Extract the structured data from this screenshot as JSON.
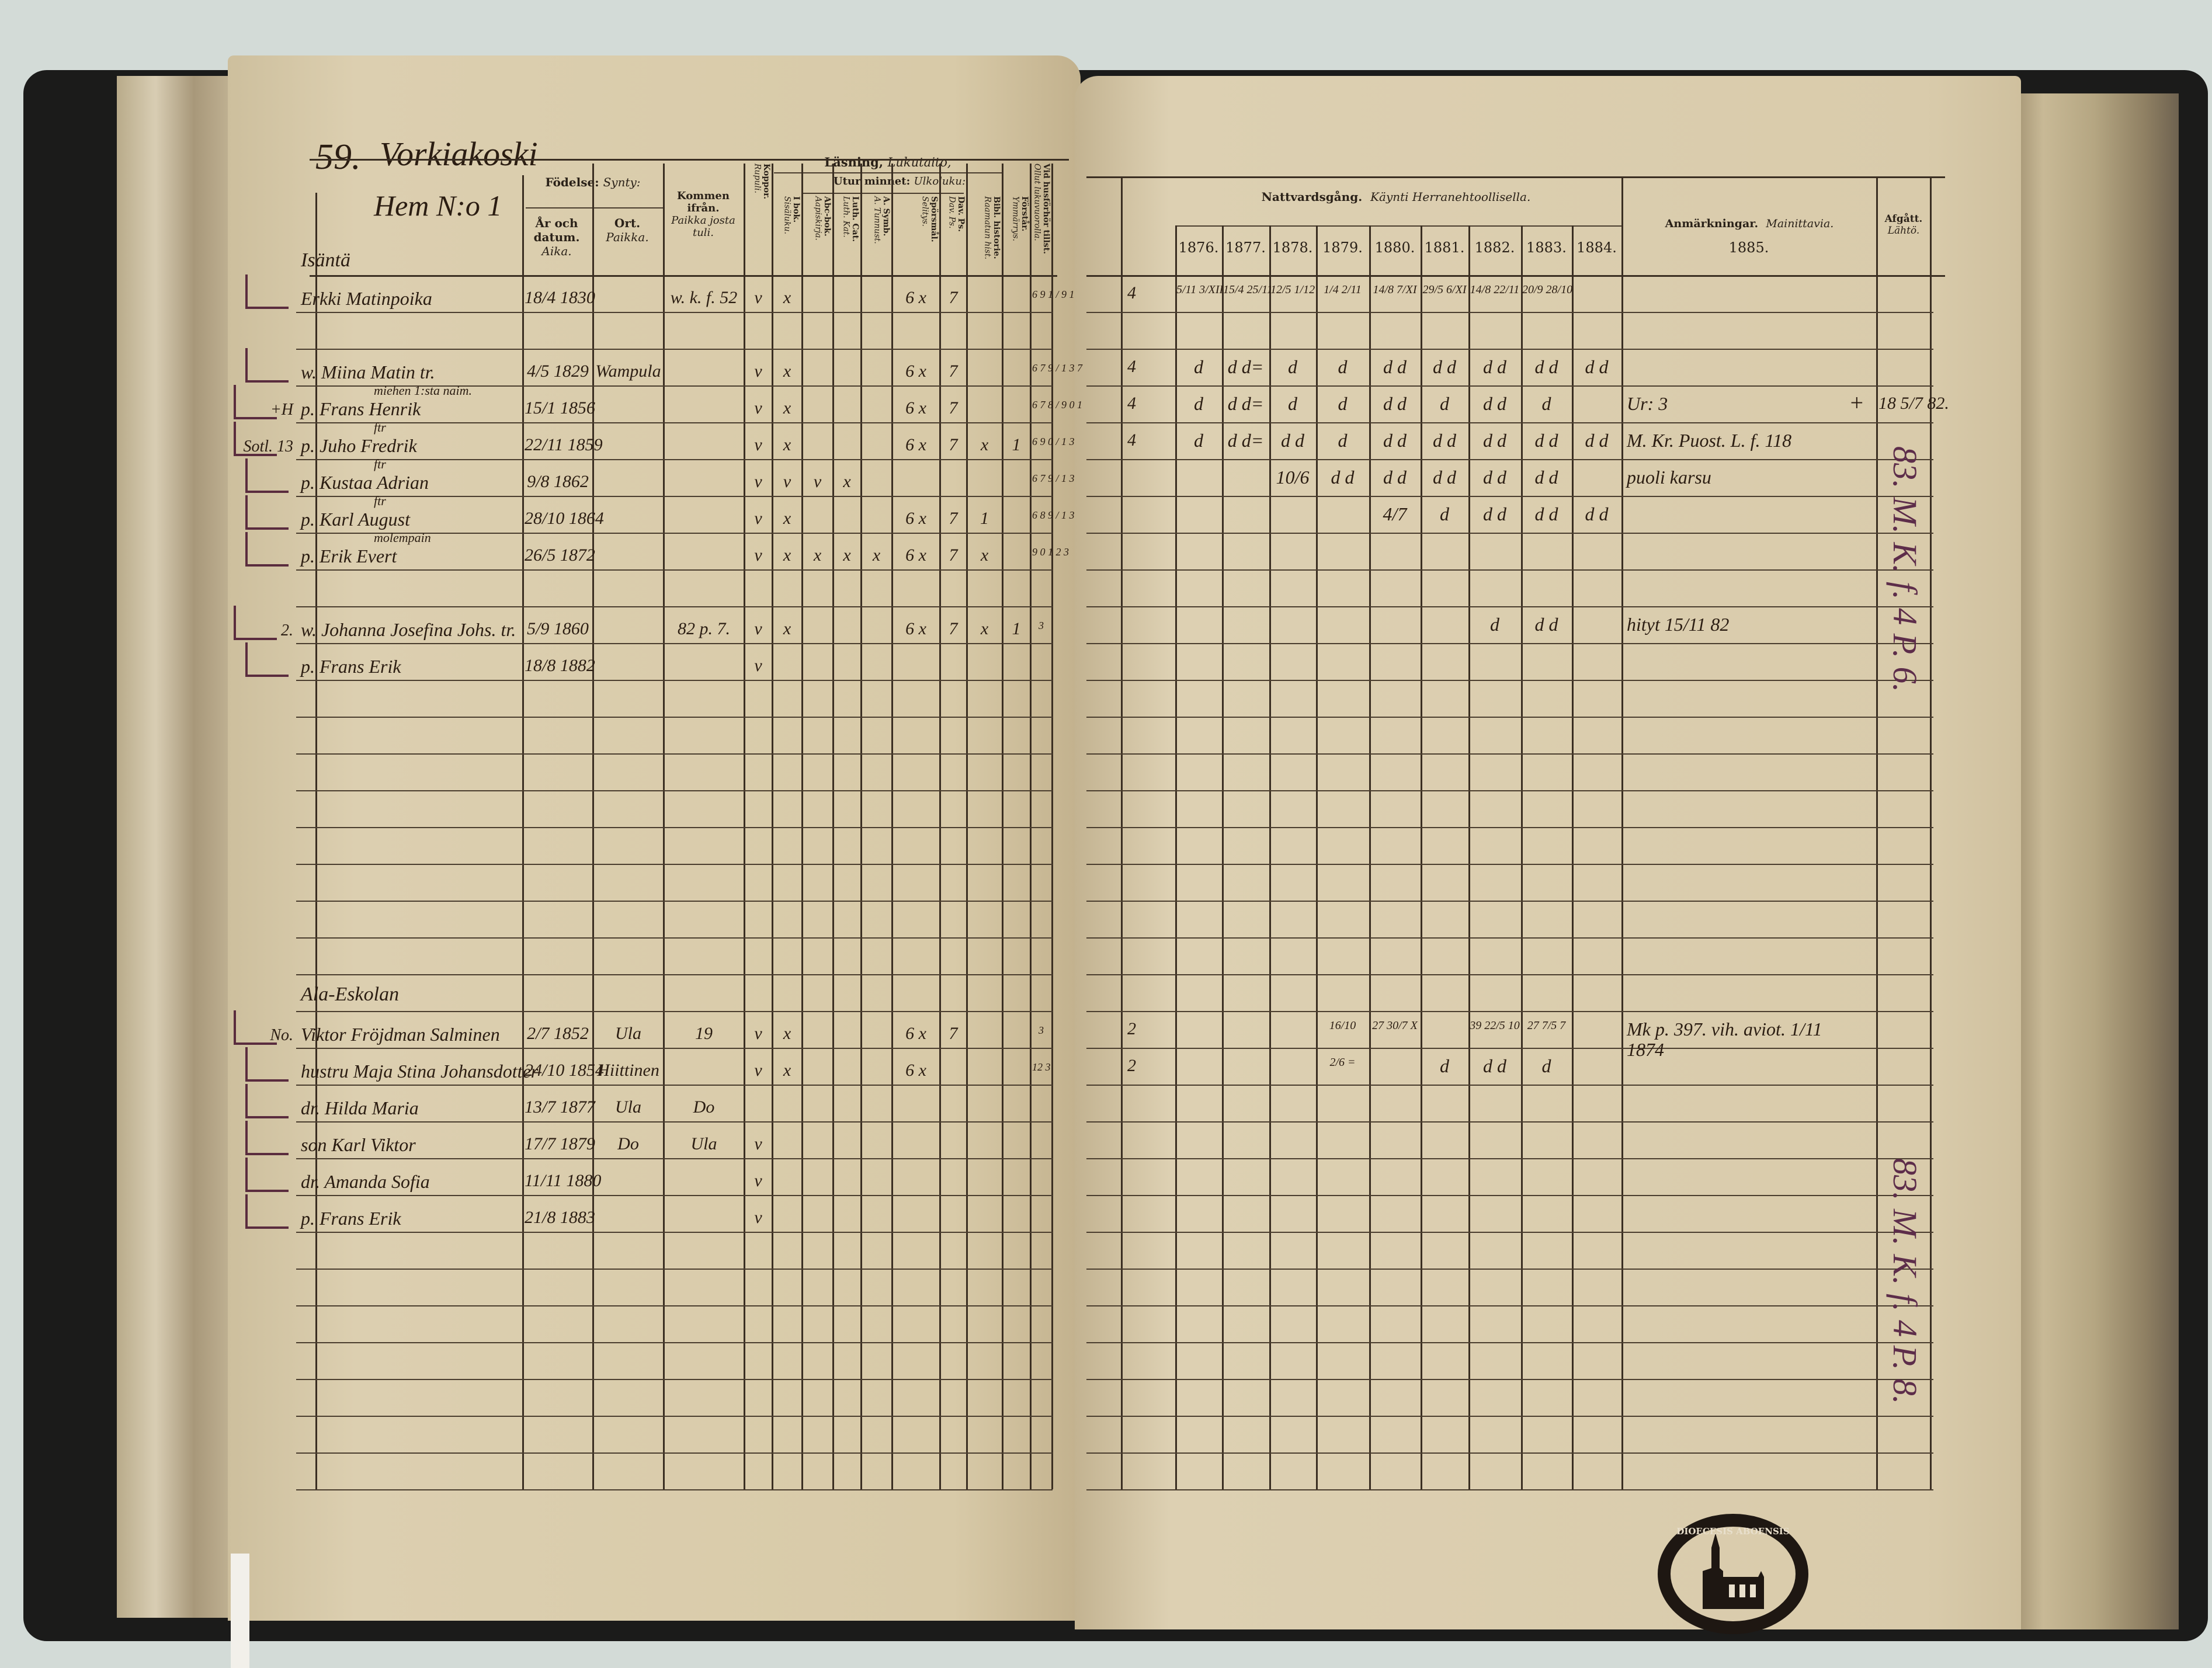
{
  "left_page": {
    "page_number": "59.",
    "village": "Vorkiakoski",
    "household": "Hem N:o 1",
    "headers": {
      "birth": {
        "sv": "Födelse:",
        "fi": "Synty:"
      },
      "date": {
        "sv": "År och datum.",
        "fi": "Aika."
      },
      "place": {
        "sv": "Ort.",
        "fi": "Paikka."
      },
      "came_from": {
        "sv": "Kommen ifrån.",
        "fi": "Paikka josta tuli."
      },
      "smallpox": {
        "sv": "Koppor.",
        "fi": "Rupuli."
      },
      "reading": {
        "sv": "Läsning,",
        "fi": "Lukutaito,"
      },
      "memory": {
        "sv": "Utur minnet:",
        "fi": "Ulkoluku:"
      },
      "book": {
        "sv": "I bok.",
        "fi": "Sisäluku."
      },
      "abc": {
        "sv": "Abc-bok.",
        "fi": "Aapiskirja."
      },
      "catechism": {
        "sv": "Luth. Cat.",
        "fi": "Luth. Kat."
      },
      "symbols": {
        "sv": "A. Symb.",
        "fi": "A. Tunnust."
      },
      "questions": {
        "sv": "Spörsmål.",
        "fi": "Selitys."
      },
      "psalms": {
        "sv": "Dav. Ps.",
        "fi": "Dav. Ps."
      },
      "bible_history": {
        "sv": "Bibl. historie.",
        "fi": "Raamatun hist."
      },
      "understands": {
        "sv": "Förstår.",
        "fi": "Ymmärrys."
      },
      "examination": {
        "sv": "Vid husförhör tillst.",
        "fi": "Ollut lukuvuorolla."
      }
    },
    "row_labels": [
      {
        "row": 0,
        "text": "Isäntä"
      },
      {
        "row": 2,
        "text": "miehen 1:sta naim.",
        "below": true
      },
      {
        "row": 4,
        "text": "ftr"
      },
      {
        "row": 5,
        "text": "ftr"
      },
      {
        "row": 6,
        "text": "ftr"
      },
      {
        "row": 6,
        "text": "molempain",
        "below": true
      },
      {
        "row": 19,
        "text": "Ala-Eskolan"
      }
    ],
    "entries": [
      {
        "row": 0,
        "prefix": "",
        "name": "Erkki Matinpoika",
        "birth": "18/4 1830",
        "place": "",
        "from": "w. k. f. 52",
        "koppor": "v",
        "ibok": "x",
        "abc": "",
        "cat": "",
        "symb": "",
        "questions": "6 x",
        "psalms": "7",
        "bible": "",
        "understands": "",
        "exam": "6 9 1 / 9 1"
      },
      {
        "row": 2,
        "prefix": "",
        "name": "w. Miina Matin tr.",
        "birth": "4/5 1829",
        "place": "Wampula",
        "from": "",
        "koppor": "v",
        "ibok": "x",
        "abc": "",
        "cat": "",
        "symb": "",
        "questions": "6 x",
        "psalms": "7",
        "bible": "",
        "understands": "",
        "exam": "6 7 9 / 1 3 7"
      },
      {
        "row": 3,
        "prefix": "+H",
        "name": "p. Frans Henrik",
        "birth": "15/1 1856",
        "place": "",
        "from": "",
        "koppor": "v",
        "ibok": "x",
        "abc": "",
        "cat": "",
        "symb": "",
        "questions": "6 x",
        "psalms": "7",
        "bible": "",
        "understands": "",
        "exam": "6 7 8 / 9 0 1"
      },
      {
        "row": 4,
        "prefix": "Sotl. 13",
        "name": "p. Juho Fredrik",
        "birth": "22/11 1859",
        "place": "",
        "from": "",
        "koppor": "v",
        "ibok": "x",
        "abc": "",
        "cat": "",
        "symb": "",
        "questions": "6 x",
        "psalms": "7",
        "bible": "x",
        "understands": "1",
        "exam": "6 9 0 / 1 3"
      },
      {
        "row": 5,
        "prefix": "",
        "name": "p. Kustaa Adrian",
        "birth": "9/8 1862",
        "place": "",
        "from": "",
        "koppor": "v",
        "ibok": "v",
        "abc": "v",
        "cat": "x",
        "symb": "",
        "questions": "",
        "psalms": "",
        "bible": "",
        "understands": "",
        "exam": "6 7 9 / 1 3"
      },
      {
        "row": 6,
        "prefix": "",
        "name": "p. Karl August",
        "birth": "28/10 1864",
        "place": "",
        "from": "",
        "koppor": "v",
        "ibok": "x",
        "abc": "",
        "cat": "",
        "symb": "",
        "questions": "6 x",
        "psalms": "7",
        "bible": "1",
        "understands": "",
        "exam": "6 8 9 / 1 3"
      },
      {
        "row": 7,
        "prefix": "",
        "name": "p. Erik Evert",
        "birth": "26/5 1872",
        "place": "",
        "from": "",
        "koppor": "v",
        "ibok": "x",
        "abc": "x",
        "cat": "x",
        "symb": "x",
        "questions": "6 x",
        "psalms": "7",
        "bible": "x",
        "understands": "",
        "exam": "9 0 1 2 3"
      },
      {
        "row": 9,
        "prefix": "2.",
        "name": "w. Johanna Josefina Johs. tr.",
        "birth": "5/9 1860",
        "place": "",
        "from": "82 p. 7.",
        "koppor": "v",
        "ibok": "x",
        "abc": "",
        "cat": "",
        "symb": "",
        "questions": "6 x",
        "psalms": "7",
        "bible": "x",
        "understands": "1",
        "exam": "3"
      },
      {
        "row": 10,
        "prefix": "",
        "name": "p. Frans Erik",
        "birth": "18/8 1882",
        "place": "",
        "from": "",
        "koppor": "v",
        "ibok": "",
        "abc": "",
        "cat": "",
        "symb": "",
        "questions": "",
        "psalms": "",
        "bible": "",
        "understands": "",
        "exam": ""
      },
      {
        "row": 20,
        "prefix": "No.",
        "name": "Viktor Fröjdman Salminen",
        "birth": "2/7 1852",
        "place": "Ula",
        "from": "19",
        "koppor": "v",
        "ibok": "x",
        "abc": "",
        "cat": "",
        "symb": "",
        "questions": "6 x",
        "psalms": "7",
        "bible": "",
        "understands": "",
        "exam": "3"
      },
      {
        "row": 21,
        "prefix": "",
        "name": "hustru Maja Stina Johansdotter",
        "birth": "24/10 1854",
        "place": "Hiittinen",
        "from": "",
        "koppor": "v",
        "ibok": "x",
        "abc": "",
        "cat": "",
        "symb": "",
        "questions": "6 x",
        "psalms": "",
        "bible": "",
        "understands": "",
        "exam": "12 3"
      },
      {
        "row": 22,
        "prefix": "",
        "name": "dr. Hilda Maria",
        "birth": "13/7 1877",
        "place": "Ula",
        "from": "Do",
        "koppor": "",
        "ibok": "",
        "abc": "",
        "cat": "",
        "symb": "",
        "questions": "",
        "psalms": "",
        "bible": "",
        "understands": "",
        "exam": ""
      },
      {
        "row": 23,
        "prefix": "",
        "name": "son Karl Viktor",
        "birth": "17/7 1879",
        "place": "Do",
        "from": "Ula",
        "koppor": "v",
        "ibok": "",
        "abc": "",
        "cat": "",
        "symb": "",
        "questions": "",
        "psalms": "",
        "bible": "",
        "understands": "",
        "exam": ""
      },
      {
        "row": 24,
        "prefix": "",
        "name": "dr. Amanda Sofia",
        "birth": "11/11 1880",
        "place": "",
        "from": "",
        "koppor": "v",
        "ibok": "",
        "abc": "",
        "cat": "",
        "symb": "",
        "questions": "",
        "psalms": "",
        "bible": "",
        "understands": "",
        "exam": ""
      },
      {
        "row": 25,
        "prefix": "",
        "name": "p. Frans Erik",
        "birth": "21/8 1883",
        "place": "",
        "from": "",
        "koppor": "v",
        "ibok": "",
        "abc": "",
        "cat": "",
        "symb": "",
        "questions": "",
        "psalms": "",
        "bible": "",
        "understands": "",
        "exam": ""
      }
    ]
  },
  "right_page": {
    "headers": {
      "communion": {
        "sv": "Nattvardsgång.",
        "fi": "Käynti Herranehtoollisella."
      },
      "remarks": {
        "sv": "Anmärkningar.",
        "fi": "Mainittavia."
      },
      "departed": {
        "sv": "Afgått.",
        "fi": "Lähtö."
      }
    },
    "years": [
      "1876.",
      "1877.",
      "1878.",
      "1879.",
      "1880.",
      "1881.",
      "1882.",
      "1883.",
      "1884.",
      "1885."
    ],
    "communion_rows": [
      {
        "row": 0,
        "prefix": "4",
        "values": [
          "5/11 3/XII",
          "15/4 25/11",
          "12/5 1/12",
          "1/4 2/11",
          "14/8 7/XI",
          "29/5 6/XI",
          "14/8 22/11",
          "20/9 28/10",
          "",
          ""
        ]
      },
      {
        "row": 2,
        "prefix": "4",
        "values": [
          "d",
          "d d=",
          "d",
          "d",
          "d d",
          "d d",
          "d d",
          "d d",
          "d d",
          ""
        ]
      },
      {
        "row": 3,
        "prefix": "4",
        "values": [
          "d",
          "d d=",
          "d",
          "d",
          "d d",
          "d",
          "d d",
          "d",
          "",
          ""
        ]
      },
      {
        "row": 4,
        "prefix": "4",
        "values": [
          "d",
          "d d=",
          "d d",
          "d",
          "d d",
          "d d",
          "d d",
          "d d",
          "d d",
          ""
        ]
      },
      {
        "row": 5,
        "prefix": "",
        "values": [
          "",
          "",
          "10/6",
          "d d",
          "d d",
          "d d",
          "d d",
          "d d",
          "",
          ""
        ]
      },
      {
        "row": 6,
        "prefix": "",
        "values": [
          "",
          "",
          "",
          "",
          "4/7",
          "d",
          "d d",
          "d d",
          "d d",
          ""
        ]
      },
      {
        "row": 9,
        "prefix": "",
        "values": [
          "",
          "",
          "",
          "",
          "",
          "",
          "d",
          "d d",
          "",
          ""
        ]
      },
      {
        "row": 20,
        "prefix": "2",
        "values": [
          "",
          "",
          "",
          "16/10",
          "27 30/7 X",
          "",
          "39 22/5 10",
          "27 7/5 7",
          "",
          ""
        ]
      },
      {
        "row": 21,
        "prefix": "2",
        "values": [
          "",
          "",
          "",
          "2/6 =",
          "",
          "d",
          "d d",
          "d",
          "",
          ""
        ]
      }
    ],
    "remarks": [
      {
        "row": 3,
        "text": "Ur: 3",
        "mark": "+"
      },
      {
        "row": 4,
        "text": "M. Kr. Puost. L. f. 118",
        "mark": ""
      },
      {
        "row": 5,
        "text": "puoli karsu",
        "mark": ""
      },
      {
        "row": 9,
        "text": "hityt 15/11 82",
        "mark": ""
      },
      {
        "row": 20,
        "text": "Mk p. 397. vih. aviot. 1/11 1874",
        "mark": ""
      }
    ],
    "departed": [
      {
        "row": 3,
        "text": "18 5/7 82."
      }
    ],
    "departed_vertical": [
      {
        "row_start": 0,
        "row_end": 12,
        "text": "83. M. K. f. 4 P. 6."
      },
      {
        "row_start": 20,
        "row_end": 27,
        "text": "83. M. K. f. 4 P. 8."
      }
    ]
  },
  "stamp": {
    "lettering": "DIOECESIS ABOENSIS"
  },
  "colors": {
    "paper": "#dccfb0",
    "ink": "#2b1d12",
    "purple_ink": "#5d2d4a",
    "cover": "#1b1b1a"
  }
}
